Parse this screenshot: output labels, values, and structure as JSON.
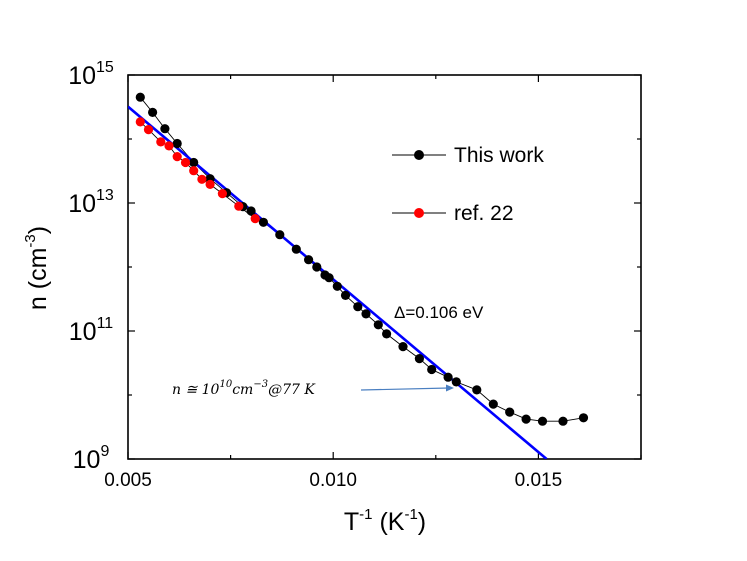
{
  "chart_data": {
    "type": "scatter",
    "xlabel": {
      "base": "T",
      "base_sup": "-1",
      "unit_open": " (K",
      "unit_sup": "-1",
      "unit_close": ")"
    },
    "ylabel": {
      "base": "n (cm",
      "base_sup": "-3",
      "close": ")"
    },
    "xlim": [
      0.005,
      0.0175
    ],
    "ylim_log10": [
      9,
      15
    ],
    "xscale": "linear",
    "yscale": "log",
    "x_ticks": [
      {
        "value": 0.005,
        "label": "0.005"
      },
      {
        "value": 0.01,
        "label": "0.010"
      },
      {
        "value": 0.015,
        "label": "0.015"
      }
    ],
    "y_ticks": [
      {
        "exp": 9,
        "base": "10",
        "sup": "9"
      },
      {
        "exp": 11,
        "base": "10",
        "sup": "11"
      },
      {
        "exp": 13,
        "base": "10",
        "sup": "13"
      },
      {
        "exp": 15,
        "base": "10",
        "sup": "15"
      }
    ],
    "series": [
      {
        "name": "This work",
        "color": "#000000",
        "marker": "circle",
        "line": "thin",
        "points": [
          [
            0.0053,
            450000000000000.0
          ],
          [
            0.0056,
            260000000000000.0
          ],
          [
            0.0059,
            145000000000000.0
          ],
          [
            0.0062,
            85000000000000.0
          ],
          [
            0.0066,
            43000000000000.0
          ],
          [
            0.007,
            24000000000000.0
          ],
          [
            0.0074,
            14500000000000.0
          ],
          [
            0.0078,
            8800000000000.0
          ],
          [
            0.008,
            7500000000000.0
          ],
          [
            0.0083,
            5000000000000.0
          ],
          [
            0.0087,
            3200000000000.0
          ],
          [
            0.0091,
            1900000000000.0
          ],
          [
            0.0094,
            1300000000000.0
          ],
          [
            0.0096,
            1000000000000.0
          ],
          [
            0.0098,
            750000000000.0
          ],
          [
            0.0099,
            680000000000.0
          ],
          [
            0.0101,
            500000000000.0
          ],
          [
            0.0103,
            360000000000.0
          ],
          [
            0.0106,
            240000000000.0
          ],
          [
            0.0108,
            185000000000.0
          ],
          [
            0.0111,
            125000000000.0
          ],
          [
            0.0113,
            90000000000.0
          ],
          [
            0.0117,
            57000000000.0
          ],
          [
            0.0121,
            37000000000.0
          ],
          [
            0.0124,
            25000000000.0
          ],
          [
            0.0128,
            19000000000.0
          ],
          [
            0.013,
            16000000000.0
          ],
          [
            0.0135,
            12000000000.0
          ],
          [
            0.0139,
            7200000000.0
          ],
          [
            0.0143,
            5400000000.0
          ],
          [
            0.0147,
            4200000000.0
          ],
          [
            0.0151,
            3900000000.0
          ],
          [
            0.0156,
            3900000000.0
          ],
          [
            0.0161,
            4400000000.0
          ]
        ]
      },
      {
        "name": "ref. 22",
        "color": "#ff0000",
        "marker": "circle",
        "line": "thin",
        "points": [
          [
            0.0053,
            185000000000000.0
          ],
          [
            0.0055,
            140000000000000.0
          ],
          [
            0.0058,
            90000000000000.0
          ],
          [
            0.006,
            78000000000000.0
          ],
          [
            0.0062,
            53000000000000.0
          ],
          [
            0.0064,
            43000000000000.0
          ],
          [
            0.0066,
            32000000000000.0
          ],
          [
            0.0068,
            23500000000000.0
          ],
          [
            0.007,
            19500000000000.0
          ],
          [
            0.0073,
            14000000000000.0
          ],
          [
            0.0077,
            8900000000000.0
          ],
          [
            0.0081,
            5700000000000.0
          ]
        ]
      },
      {
        "name": "fit",
        "color": "#0000ff",
        "type": "line",
        "points": [
          [
            0.005,
            320000000000000.0
          ],
          [
            0.0152,
            1000000000.0
          ]
        ]
      }
    ],
    "legend": {
      "position": "top-right",
      "entries": [
        {
          "label": "This work",
          "color": "#000000"
        },
        {
          "label": "ref. 22",
          "color": "#ff0000"
        }
      ]
    },
    "annotations": {
      "fit_label": "Δ=0.106 eV",
      "fit_color": "#0000ff",
      "note": {
        "prefix": "n ≅ 10",
        "sup1": "10",
        "mid": "cm",
        "sup2": "−3",
        "suffix": "@77 K"
      },
      "arrow_color": "#4a7fc1"
    }
  }
}
